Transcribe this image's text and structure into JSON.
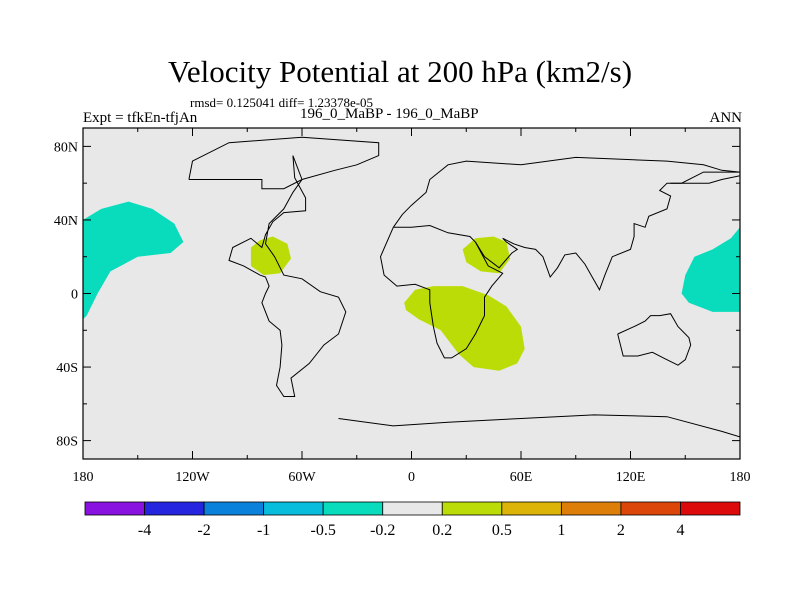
{
  "chart_data": {
    "type": "heatmap",
    "title": "Velocity Potential at 200 hPa (km2/s)",
    "stats": "rmsd= 0.125041  diff= 1.23378e-05",
    "left_label": "Expt = tfkEn-tfjAn",
    "center_label": "196_0_MaBP - 196_0_MaBP",
    "right_label": "ANN",
    "xlim": [
      -180,
      180
    ],
    "ylim": [
      -90,
      90
    ],
    "x_ticks": [
      {
        "value": -180,
        "label": "180"
      },
      {
        "value": -120,
        "label": "120W"
      },
      {
        "value": -60,
        "label": "60W"
      },
      {
        "value": 0,
        "label": "0"
      },
      {
        "value": 60,
        "label": "60E"
      },
      {
        "value": 120,
        "label": "120E"
      },
      {
        "value": 180,
        "label": "180"
      }
    ],
    "y_ticks": [
      {
        "value": 80,
        "label": "80N"
      },
      {
        "value": 40,
        "label": "40N"
      },
      {
        "value": 0,
        "label": "0"
      },
      {
        "value": -40,
        "label": "40S"
      },
      {
        "value": -80,
        "label": "80S"
      }
    ],
    "background_bin": "-0.2 to 0.2",
    "colorbar": {
      "levels": [
        "-4",
        "-2",
        "-1",
        "-0.5",
        "-0.2",
        "0.2",
        "0.5",
        "1",
        "2",
        "4"
      ],
      "colors": [
        "#8a12e0",
        "#2525e0",
        "#0a82dc",
        "#08bcdc",
        "#08dcbc",
        "#e8e8e8",
        "#bcdc08",
        "#dcb408",
        "#dc7e08",
        "#dc4608",
        "#dc0a0a"
      ]
    },
    "regions": [
      {
        "name": "dateline-west-positive",
        "bin": "-0.5 to -0.2",
        "color": "#08dcbc",
        "polygon": [
          [
            -180,
            40
          ],
          [
            -170,
            46
          ],
          [
            -155,
            50
          ],
          [
            -142,
            46
          ],
          [
            -130,
            38
          ],
          [
            -125,
            28
          ],
          [
            -132,
            22
          ],
          [
            -150,
            20
          ],
          [
            -165,
            12
          ],
          [
            -172,
            0
          ],
          [
            -178,
            -12
          ],
          [
            -180,
            -14
          ]
        ]
      },
      {
        "name": "dateline-east-positive",
        "bin": "-0.5 to -0.2",
        "color": "#08dcbc",
        "polygon": [
          [
            180,
            36
          ],
          [
            175,
            30
          ],
          [
            165,
            24
          ],
          [
            155,
            20
          ],
          [
            150,
            10
          ],
          [
            148,
            0
          ],
          [
            152,
            -5
          ],
          [
            165,
            -10
          ],
          [
            175,
            -10
          ],
          [
            180,
            -10
          ]
        ]
      },
      {
        "name": "north-america-negative",
        "bin": "0.2 to 0.5",
        "color": "#bcdc08",
        "polygon": [
          [
            -88,
            25
          ],
          [
            -83,
            29
          ],
          [
            -76,
            31
          ],
          [
            -68,
            27
          ],
          [
            -66,
            19
          ],
          [
            -72,
            11
          ],
          [
            -81,
            10
          ],
          [
            -88,
            15
          ]
        ]
      },
      {
        "name": "south-asia-negative",
        "bin": "0.2 to 0.5",
        "color": "#bcdc08",
        "polygon": [
          [
            28,
            24
          ],
          [
            35,
            30
          ],
          [
            45,
            31
          ],
          [
            52,
            28
          ],
          [
            54,
            19
          ],
          [
            48,
            11
          ],
          [
            38,
            12
          ],
          [
            30,
            17
          ]
        ]
      },
      {
        "name": "africa-indian-ocean-negative",
        "bin": "0.2 to 0.5",
        "color": "#bcdc08",
        "polygon": [
          [
            -4,
            -5
          ],
          [
            2,
            2
          ],
          [
            12,
            4
          ],
          [
            28,
            4
          ],
          [
            42,
            -1
          ],
          [
            52,
            -7
          ],
          [
            60,
            -18
          ],
          [
            62,
            -30
          ],
          [
            58,
            -38
          ],
          [
            48,
            -42
          ],
          [
            34,
            -40
          ],
          [
            26,
            -33
          ],
          [
            16,
            -20
          ],
          [
            4,
            -14
          ],
          [
            -3,
            -9
          ]
        ]
      }
    ],
    "coastlines": [
      [
        [
          -122,
          62
        ],
        [
          -82,
          62
        ],
        [
          -82,
          57
        ],
        [
          -70,
          57
        ],
        [
          -60,
          62
        ],
        [
          -42,
          67
        ],
        [
          -30,
          70
        ],
        [
          -18,
          75
        ],
        [
          -18,
          82
        ],
        [
          -60,
          85
        ],
        [
          -100,
          82
        ],
        [
          -120,
          72
        ],
        [
          -122,
          62
        ]
      ],
      [
        [
          -65,
          75
        ],
        [
          -64,
          63
        ],
        [
          -58,
          52
        ],
        [
          -58,
          45
        ],
        [
          -70,
          44
        ],
        [
          -76,
          39
        ],
        [
          -80,
          32
        ],
        [
          -82,
          25
        ],
        [
          -88,
          30
        ],
        [
          -98,
          25
        ],
        [
          -100,
          18
        ],
        [
          -92,
          15
        ],
        [
          -83,
          10
        ],
        [
          -80,
          9
        ],
        [
          -78,
          4
        ],
        [
          -80,
          0
        ],
        [
          -82,
          -5
        ],
        [
          -78,
          -15
        ],
        [
          -72,
          -20
        ],
        [
          -71,
          -28
        ],
        [
          -72,
          -40
        ],
        [
          -74,
          -50
        ],
        [
          -70,
          -56
        ],
        [
          -64,
          -56
        ],
        [
          -66,
          -46
        ],
        [
          -56,
          -38
        ],
        [
          -48,
          -28
        ],
        [
          -40,
          -22
        ],
        [
          -36,
          -10
        ],
        [
          -40,
          -2
        ],
        [
          -50,
          1
        ],
        [
          -60,
          8
        ],
        [
          -70,
          10
        ],
        [
          -75,
          20
        ],
        [
          -80,
          27
        ],
        [
          -78,
          38
        ],
        [
          -70,
          46
        ],
        [
          -65,
          55
        ],
        [
          -60,
          62
        ],
        [
          -65,
          75
        ]
      ],
      [
        [
          -10,
          36
        ],
        [
          -5,
          43
        ],
        [
          0,
          48
        ],
        [
          8,
          55
        ],
        [
          10,
          62
        ],
        [
          20,
          70
        ],
        [
          30,
          72
        ],
        [
          60,
          70
        ],
        [
          90,
          74
        ],
        [
          115,
          73
        ],
        [
          140,
          72
        ],
        [
          160,
          70
        ],
        [
          170,
          67
        ],
        [
          180,
          66
        ]
      ],
      [
        [
          -10,
          36
        ],
        [
          -17,
          20
        ],
        [
          -15,
          10
        ],
        [
          -8,
          4
        ],
        [
          2,
          5
        ],
        [
          10,
          2
        ],
        [
          10,
          -5
        ],
        [
          12,
          -18
        ],
        [
          14,
          -27
        ],
        [
          18,
          -35
        ],
        [
          22,
          -35
        ],
        [
          30,
          -30
        ],
        [
          35,
          -22
        ],
        [
          40,
          -12
        ],
        [
          40,
          -2
        ],
        [
          44,
          4
        ],
        [
          50,
          11
        ],
        [
          42,
          15
        ],
        [
          35,
          28
        ],
        [
          32,
          31
        ],
        [
          20,
          33
        ],
        [
          10,
          37
        ],
        [
          0,
          36
        ],
        [
          -10,
          36
        ]
      ],
      [
        [
          35,
          28
        ],
        [
          40,
          20
        ],
        [
          48,
          14
        ],
        [
          55,
          22
        ],
        [
          58,
          24
        ],
        [
          52,
          28
        ],
        [
          50,
          30
        ],
        [
          56,
          27
        ],
        [
          62,
          25
        ],
        [
          68,
          24
        ],
        [
          72,
          20
        ],
        [
          76,
          9
        ],
        [
          80,
          14
        ],
        [
          84,
          21
        ],
        [
          90,
          22
        ],
        [
          95,
          16
        ],
        [
          99,
          9
        ],
        [
          103,
          2
        ],
        [
          106,
          10
        ],
        [
          110,
          20
        ],
        [
          120,
          24
        ],
        [
          122,
          31
        ],
        [
          122,
          38
        ],
        [
          128,
          36
        ],
        [
          130,
          42
        ],
        [
          140,
          46
        ],
        [
          142,
          53
        ],
        [
          136,
          56
        ],
        [
          140,
          60
        ],
        [
          155,
          60
        ],
        [
          163,
          60
        ],
        [
          170,
          62
        ],
        [
          180,
          64
        ]
      ],
      [
        [
          113,
          -22
        ],
        [
          114,
          -26
        ],
        [
          116,
          -34
        ],
        [
          124,
          -34
        ],
        [
          132,
          -32
        ],
        [
          138,
          -35
        ],
        [
          146,
          -39
        ],
        [
          150,
          -36
        ],
        [
          153,
          -28
        ],
        [
          152,
          -24
        ],
        [
          146,
          -18
        ],
        [
          142,
          -11
        ],
        [
          136,
          -12
        ],
        [
          131,
          -12
        ],
        [
          128,
          -15
        ],
        [
          122,
          -18
        ],
        [
          113,
          -22
        ]
      ],
      [
        [
          142,
          60
        ],
        [
          148,
          60
        ],
        [
          160,
          66
        ],
        [
          172,
          66
        ],
        [
          180,
          66
        ]
      ],
      [
        [
          -40,
          -68
        ],
        [
          -10,
          -72
        ],
        [
          20,
          -70
        ],
        [
          60,
          -68
        ],
        [
          100,
          -66
        ],
        [
          140,
          -67
        ],
        [
          170,
          -75
        ],
        [
          180,
          -78
        ]
      ]
    ]
  }
}
